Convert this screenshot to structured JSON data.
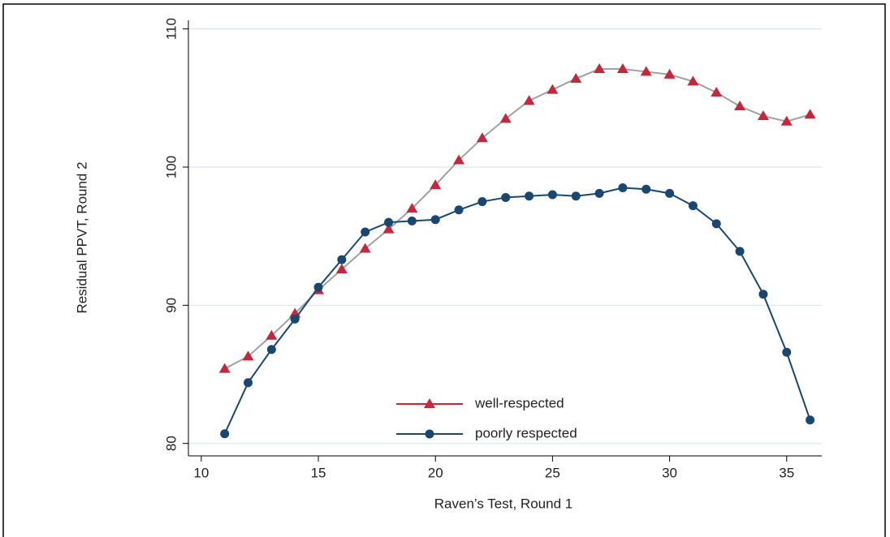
{
  "chart_data": {
    "type": "line",
    "x_label": "Raven’s Test, Round 1",
    "y_label": "Residual PPVT, Round 2",
    "x": [
      11,
      12,
      13,
      14,
      15,
      16,
      17,
      18,
      19,
      20,
      21,
      22,
      23,
      24,
      25,
      26,
      27,
      28,
      29,
      30,
      31,
      32,
      33,
      34,
      35,
      36
    ],
    "series": [
      {
        "name": "well-respected",
        "color": "#c3283c",
        "line_color": "#a0a0a0",
        "marker": "triangle",
        "values": [
          85.4,
          86.3,
          87.8,
          89.4,
          91.1,
          92.6,
          94.1,
          95.5,
          97.0,
          98.7,
          100.5,
          102.1,
          103.5,
          104.8,
          105.6,
          106.4,
          107.1,
          107.1,
          106.9,
          106.7,
          106.2,
          105.4,
          104.4,
          103.7,
          103.3,
          103.8
        ]
      },
      {
        "name": "poorly respected",
        "color": "#1a476f",
        "line_color": "#1a476f",
        "marker": "circle",
        "values": [
          80.7,
          84.4,
          86.8,
          89.0,
          91.3,
          93.3,
          95.3,
          96.0,
          96.1,
          96.2,
          96.9,
          97.5,
          97.8,
          97.9,
          98.0,
          97.9,
          98.1,
          98.5,
          98.4,
          98.1,
          97.2,
          95.9,
          93.9,
          90.8,
          86.6,
          81.7
        ]
      }
    ],
    "xlim": [
      9.45,
      36.5
    ],
    "xticks": [
      10,
      15,
      20,
      25,
      30,
      35
    ],
    "ylim": [
      79.1,
      110.8
    ],
    "yticks": [
      80,
      90,
      100,
      110
    ],
    "grid": true
  }
}
